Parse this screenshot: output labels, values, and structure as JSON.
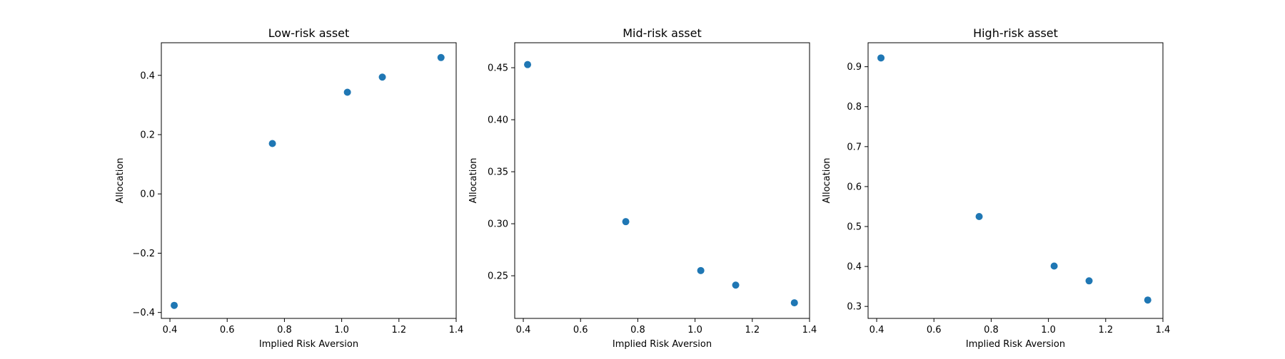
{
  "colors": {
    "marker": "#1f77b4",
    "axes": "#000000",
    "background": "#ffffff"
  },
  "chart_data": [
    {
      "type": "scatter",
      "title": "Low-risk asset",
      "xlabel": "Implied Risk Aversion",
      "ylabel": "Allocation",
      "xlim": [
        0.37,
        1.4
      ],
      "ylim": [
        -0.42,
        0.51
      ],
      "xticks": [
        0.4,
        0.6,
        0.8,
        1.0,
        1.2,
        1.4
      ],
      "xtick_labels": [
        "0.4",
        "0.6",
        "0.8",
        "1.0",
        "1.2",
        "1.4"
      ],
      "yticks": [
        -0.4,
        -0.2,
        0.0,
        0.2,
        0.4
      ],
      "ytick_labels": [
        "−0.4",
        "−0.2",
        "0.0",
        "0.2",
        "0.4"
      ],
      "grid": false,
      "x": [
        0.415,
        0.758,
        1.02,
        1.142,
        1.347
      ],
      "y": [
        -0.376,
        0.17,
        0.343,
        0.394,
        0.46
      ]
    },
    {
      "type": "scatter",
      "title": "Mid-risk asset",
      "xlabel": "Implied Risk Aversion",
      "ylabel": "Allocation",
      "xlim": [
        0.37,
        1.4
      ],
      "ylim": [
        0.209,
        0.474
      ],
      "xticks": [
        0.4,
        0.6,
        0.8,
        1.0,
        1.2,
        1.4
      ],
      "xtick_labels": [
        "0.4",
        "0.6",
        "0.8",
        "1.0",
        "1.2",
        "1.4"
      ],
      "yticks": [
        0.25,
        0.3,
        0.35,
        0.4,
        0.45
      ],
      "ytick_labels": [
        "0.25",
        "0.30",
        "0.35",
        "0.40",
        "0.45"
      ],
      "grid": false,
      "x": [
        0.415,
        0.758,
        1.02,
        1.142,
        1.347
      ],
      "y": [
        0.453,
        0.302,
        0.255,
        0.241,
        0.224
      ]
    },
    {
      "type": "scatter",
      "title": "High-risk asset",
      "xlabel": "Implied Risk Aversion",
      "ylabel": "Allocation",
      "xlim": [
        0.37,
        1.4
      ],
      "ylim": [
        0.27,
        0.96
      ],
      "xticks": [
        0.4,
        0.6,
        0.8,
        1.0,
        1.2,
        1.4
      ],
      "xtick_labels": [
        "0.4",
        "0.6",
        "0.8",
        "1.0",
        "1.2",
        "1.4"
      ],
      "yticks": [
        0.3,
        0.4,
        0.5,
        0.6,
        0.7,
        0.8,
        0.9
      ],
      "ytick_labels": [
        "0.3",
        "0.4",
        "0.5",
        "0.6",
        "0.7",
        "0.8",
        "0.9"
      ],
      "grid": false,
      "x": [
        0.415,
        0.758,
        1.02,
        1.142,
        1.347
      ],
      "y": [
        0.922,
        0.525,
        0.401,
        0.364,
        0.316
      ]
    }
  ]
}
